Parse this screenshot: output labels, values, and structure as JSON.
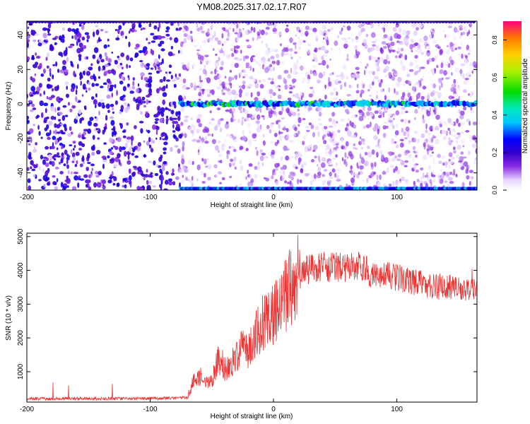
{
  "title": "YM08.2025.317.02.17.R07",
  "chart_data": [
    {
      "type": "heatmap",
      "title": "YM08.2025.317.02.17.R07",
      "xlabel": "Height of straight line (km)",
      "ylabel": "Frequency (Hz)",
      "xlim": [
        -200,
        165
      ],
      "ylim": [
        -50,
        48
      ],
      "xticks": [
        -200,
        -100,
        0,
        100
      ],
      "yticks": [
        -40,
        -20,
        0,
        20,
        40
      ],
      "colorbar": {
        "label": "Normalized spectral amplitude",
        "range": [
          0.0,
          0.9
        ],
        "ticks": [
          0.0,
          0.2,
          0.4,
          0.6,
          0.8
        ]
      },
      "features": {
        "noise_onset_height_km": -75,
        "strong_band_frequency_hz": 0,
        "edge_band_frequency_hz": -49
      }
    },
    {
      "type": "line",
      "xlabel": "Height of straight line (km)",
      "ylabel": "SNR (10 * v/v)",
      "xlim": [
        -200,
        165
      ],
      "ylim": [
        100,
        5100
      ],
      "xticks": [
        -200,
        -100,
        0,
        100
      ],
      "yticks": [
        1000,
        2000,
        3000,
        4000,
        5000
      ],
      "series": [
        {
          "name": "SNR",
          "color": "#ee3333",
          "x": [
            -200,
            -150,
            -100,
            -70,
            -65,
            -60,
            -55,
            -50,
            -45,
            -40,
            -35,
            -30,
            -25,
            -20,
            -15,
            -10,
            -5,
            0,
            5,
            10,
            15,
            20,
            25,
            30,
            40,
            50,
            60,
            70,
            80,
            90,
            100,
            110,
            120,
            130,
            140,
            150,
            160,
            165
          ],
          "values": [
            200,
            200,
            210,
            230,
            700,
            900,
            600,
            800,
            1300,
            1050,
            1150,
            1500,
            1700,
            1600,
            2000,
            2400,
            2600,
            2700,
            3000,
            3300,
            3600,
            3800,
            4000,
            4050,
            4100,
            4100,
            4100,
            4100,
            3900,
            3900,
            3800,
            3700,
            3600,
            3500,
            3500,
            3500,
            3400,
            3500
          ]
        }
      ]
    }
  ]
}
